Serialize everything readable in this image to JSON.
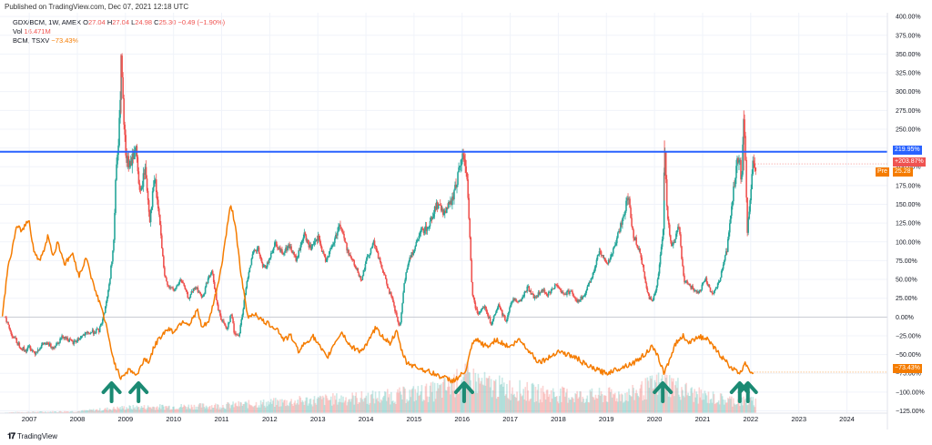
{
  "header": {
    "published": "Published on TradingView.com, Dec 07, 2021 12:18 UTC"
  },
  "legend": {
    "symbol": "GDX/BCM, 1W, AMEX",
    "o_key": "O",
    "o_val": "27.04",
    "h_key": "H",
    "h_val": "27.04",
    "l_key": "L",
    "l_val": "24.98",
    "c_key": "C",
    "c_val": "25.30",
    "change": "−0.49 (−1.90%)",
    "vol_label": "Vol",
    "vol_val": "16.471M",
    "bcm_label": "BCM, TSXV",
    "bcm_val": "−73.43%"
  },
  "footer": {
    "brand": "TradingView"
  },
  "colors": {
    "up": "#26a69a",
    "down": "#ef5350",
    "orange": "#f57c00",
    "blue": "#2962ff",
    "arrow": "#1b8a73",
    "grid": "#f0f3fa"
  },
  "tags": {
    "hline": "219.95%",
    "current": "+203.87%",
    "pre_label": "Pre",
    "pre_value": "25.28",
    "bcm": "−73.43%"
  },
  "chart_data": {
    "type": "line",
    "title": "",
    "y_axis": {
      "ticks": [
        400,
        375,
        350,
        325,
        300,
        275,
        250,
        225,
        200,
        175,
        150,
        125,
        100,
        75,
        50,
        25,
        0,
        -25,
        -50,
        -75,
        -100,
        -125
      ],
      "tick_labels": [
        "400.00%",
        "375.00%",
        "350.00%",
        "325.00%",
        "300.00%",
        "275.00%",
        "250.00%",
        "225.00%",
        "200.00%",
        "175.00%",
        "150.00%",
        "125.00%",
        "100.00%",
        "75.00%",
        "50.00%",
        "25.00%",
        "0.00%",
        "−25.00%",
        "−50.00%",
        "−75.00%",
        "−100.00%",
        "−125.00%"
      ],
      "range": [
        -128,
        405
      ],
      "scale": "percent"
    },
    "x_axis": {
      "years": [
        2007,
        2008,
        2009,
        2010,
        2011,
        2012,
        2013,
        2014,
        2015,
        2016,
        2017,
        2018,
        2019,
        2020,
        2021,
        2022,
        2023,
        2024
      ],
      "range": [
        2006.4,
        2024.85
      ]
    },
    "horizontal_line": {
      "value": 219.95
    },
    "series": [
      {
        "style": "candles",
        "points": [
          [
            2006.5,
            0
          ],
          [
            2006.6,
            -20
          ],
          [
            2006.75,
            -35
          ],
          [
            2006.9,
            -45
          ],
          [
            2007.0,
            -40
          ],
          [
            2007.1,
            -48
          ],
          [
            2007.3,
            -35
          ],
          [
            2007.5,
            -40
          ],
          [
            2007.7,
            -25
          ],
          [
            2007.9,
            -35
          ],
          [
            2008.1,
            -25
          ],
          [
            2008.3,
            -20
          ],
          [
            2008.45,
            -18
          ],
          [
            2008.55,
            5
          ],
          [
            2008.65,
            40
          ],
          [
            2008.75,
            100
          ],
          [
            2008.8,
            200
          ],
          [
            2008.85,
            230
          ],
          [
            2008.88,
            280
          ],
          [
            2008.9,
            350
          ],
          [
            2008.95,
            270
          ],
          [
            2009.0,
            210
          ],
          [
            2009.1,
            200
          ],
          [
            2009.2,
            230
          ],
          [
            2009.3,
            160
          ],
          [
            2009.4,
            200
          ],
          [
            2009.5,
            130
          ],
          [
            2009.6,
            185
          ],
          [
            2009.7,
            130
          ],
          [
            2009.8,
            55
          ],
          [
            2009.9,
            40
          ],
          [
            2010.0,
            35
          ],
          [
            2010.15,
            50
          ],
          [
            2010.3,
            25
          ],
          [
            2010.45,
            40
          ],
          [
            2010.6,
            25
          ],
          [
            2010.7,
            50
          ],
          [
            2010.8,
            60
          ],
          [
            2010.9,
            15
          ],
          [
            2011.0,
            -5
          ],
          [
            2011.1,
            -15
          ],
          [
            2011.2,
            5
          ],
          [
            2011.25,
            -20
          ],
          [
            2011.35,
            -25
          ],
          [
            2011.45,
            15
          ],
          [
            2011.55,
            60
          ],
          [
            2011.65,
            85
          ],
          [
            2011.75,
            90
          ],
          [
            2011.85,
            65
          ],
          [
            2011.95,
            70
          ],
          [
            2012.1,
            100
          ],
          [
            2012.25,
            85
          ],
          [
            2012.4,
            95
          ],
          [
            2012.55,
            75
          ],
          [
            2012.7,
            110
          ],
          [
            2012.85,
            90
          ],
          [
            2013.0,
            105
          ],
          [
            2013.15,
            75
          ],
          [
            2013.3,
            95
          ],
          [
            2013.45,
            125
          ],
          [
            2013.6,
            90
          ],
          [
            2013.75,
            70
          ],
          [
            2013.9,
            50
          ],
          [
            2014.0,
            75
          ],
          [
            2014.15,
            100
          ],
          [
            2014.3,
            70
          ],
          [
            2014.45,
            40
          ],
          [
            2014.55,
            20
          ],
          [
            2014.65,
            -5
          ],
          [
            2014.7,
            -15
          ],
          [
            2014.8,
            50
          ],
          [
            2014.9,
            80
          ],
          [
            2015.0,
            90
          ],
          [
            2015.15,
            115
          ],
          [
            2015.3,
            120
          ],
          [
            2015.45,
            150
          ],
          [
            2015.6,
            140
          ],
          [
            2015.75,
            150
          ],
          [
            2015.85,
            170
          ],
          [
            2015.95,
            205
          ],
          [
            2016.05,
            215
          ],
          [
            2016.1,
            175
          ],
          [
            2016.15,
            110
          ],
          [
            2016.2,
            35
          ],
          [
            2016.3,
            5
          ],
          [
            2016.45,
            15
          ],
          [
            2016.6,
            -10
          ],
          [
            2016.75,
            15
          ],
          [
            2016.9,
            -5
          ],
          [
            2017.05,
            25
          ],
          [
            2017.2,
            20
          ],
          [
            2017.35,
            40
          ],
          [
            2017.5,
            25
          ],
          [
            2017.65,
            35
          ],
          [
            2017.8,
            30
          ],
          [
            2017.95,
            45
          ],
          [
            2018.1,
            30
          ],
          [
            2018.25,
            35
          ],
          [
            2018.4,
            20
          ],
          [
            2018.55,
            30
          ],
          [
            2018.7,
            55
          ],
          [
            2018.85,
            90
          ],
          [
            2019.0,
            70
          ],
          [
            2019.15,
            90
          ],
          [
            2019.3,
            125
          ],
          [
            2019.45,
            160
          ],
          [
            2019.55,
            110
          ],
          [
            2019.7,
            85
          ],
          [
            2019.85,
            30
          ],
          [
            2019.95,
            20
          ],
          [
            2020.05,
            45
          ],
          [
            2020.12,
            85
          ],
          [
            2020.18,
            120
          ],
          [
            2020.2,
            235
          ],
          [
            2020.25,
            145
          ],
          [
            2020.35,
            90
          ],
          [
            2020.5,
            120
          ],
          [
            2020.6,
            50
          ],
          [
            2020.75,
            40
          ],
          [
            2020.9,
            30
          ],
          [
            2021.05,
            50
          ],
          [
            2021.2,
            30
          ],
          [
            2021.35,
            50
          ],
          [
            2021.5,
            90
          ],
          [
            2021.6,
            150
          ],
          [
            2021.7,
            200
          ],
          [
            2021.75,
            215
          ],
          [
            2021.8,
            180
          ],
          [
            2021.85,
            275
          ],
          [
            2021.88,
            220
          ],
          [
            2021.92,
            110
          ],
          [
            2022.0,
            175
          ],
          [
            2022.05,
            215
          ],
          [
            2022.1,
            200
          ]
        ]
      },
      {
        "name": "BCM, TSXV",
        "style": "line",
        "points": [
          [
            2006.45,
            0
          ],
          [
            2006.55,
            60
          ],
          [
            2006.65,
            90
          ],
          [
            2006.75,
            120
          ],
          [
            2006.85,
            115
          ],
          [
            2007.0,
            130
          ],
          [
            2007.1,
            90
          ],
          [
            2007.2,
            75
          ],
          [
            2007.3,
            85
          ],
          [
            2007.4,
            110
          ],
          [
            2007.5,
            80
          ],
          [
            2007.6,
            100
          ],
          [
            2007.75,
            70
          ],
          [
            2007.9,
            85
          ],
          [
            2008.05,
            55
          ],
          [
            2008.2,
            80
          ],
          [
            2008.35,
            40
          ],
          [
            2008.5,
            15
          ],
          [
            2008.6,
            -10
          ],
          [
            2008.7,
            -40
          ],
          [
            2008.8,
            -65
          ],
          [
            2008.9,
            -80
          ],
          [
            2009.0,
            -75
          ],
          [
            2009.1,
            -70
          ],
          [
            2009.25,
            -78
          ],
          [
            2009.4,
            -55
          ],
          [
            2009.5,
            -60
          ],
          [
            2009.6,
            -40
          ],
          [
            2009.75,
            -25
          ],
          [
            2009.9,
            -15
          ],
          [
            2010.0,
            -20
          ],
          [
            2010.2,
            -5
          ],
          [
            2010.35,
            -10
          ],
          [
            2010.5,
            10
          ],
          [
            2010.6,
            -15
          ],
          [
            2010.75,
            -5
          ],
          [
            2010.9,
            35
          ],
          [
            2011.0,
            65
          ],
          [
            2011.1,
            110
          ],
          [
            2011.2,
            150
          ],
          [
            2011.3,
            120
          ],
          [
            2011.4,
            60
          ],
          [
            2011.5,
            20
          ],
          [
            2011.55,
            0
          ],
          [
            2011.7,
            5
          ],
          [
            2011.85,
            -5
          ],
          [
            2012.0,
            -10
          ],
          [
            2012.15,
            -15
          ],
          [
            2012.3,
            -30
          ],
          [
            2012.45,
            -25
          ],
          [
            2012.6,
            -45
          ],
          [
            2012.75,
            -35
          ],
          [
            2012.9,
            -25
          ],
          [
            2013.05,
            -40
          ],
          [
            2013.2,
            -55
          ],
          [
            2013.35,
            -35
          ],
          [
            2013.5,
            -20
          ],
          [
            2013.7,
            -40
          ],
          [
            2013.9,
            -45
          ],
          [
            2014.05,
            -35
          ],
          [
            2014.2,
            -15
          ],
          [
            2014.35,
            -25
          ],
          [
            2014.5,
            -35
          ],
          [
            2014.65,
            -20
          ],
          [
            2014.75,
            -45
          ],
          [
            2014.85,
            -60
          ],
          [
            2015.0,
            -65
          ],
          [
            2015.2,
            -70
          ],
          [
            2015.4,
            -75
          ],
          [
            2015.6,
            -80
          ],
          [
            2015.8,
            -85
          ],
          [
            2015.95,
            -80
          ],
          [
            2016.1,
            -70
          ],
          [
            2016.2,
            -40
          ],
          [
            2016.3,
            -30
          ],
          [
            2016.4,
            -35
          ],
          [
            2016.55,
            -40
          ],
          [
            2016.7,
            -30
          ],
          [
            2016.85,
            -35
          ],
          [
            2017.0,
            -40
          ],
          [
            2017.2,
            -30
          ],
          [
            2017.4,
            -45
          ],
          [
            2017.6,
            -60
          ],
          [
            2017.8,
            -55
          ],
          [
            2018.0,
            -45
          ],
          [
            2018.2,
            -50
          ],
          [
            2018.4,
            -55
          ],
          [
            2018.6,
            -65
          ],
          [
            2018.8,
            -70
          ],
          [
            2019.0,
            -75
          ],
          [
            2019.2,
            -70
          ],
          [
            2019.4,
            -65
          ],
          [
            2019.6,
            -60
          ],
          [
            2019.8,
            -50
          ],
          [
            2019.95,
            -40
          ],
          [
            2020.1,
            -55
          ],
          [
            2020.2,
            -75
          ],
          [
            2020.3,
            -60
          ],
          [
            2020.45,
            -35
          ],
          [
            2020.6,
            -25
          ],
          [
            2020.75,
            -35
          ],
          [
            2020.9,
            -25
          ],
          [
            2021.1,
            -30
          ],
          [
            2021.3,
            -45
          ],
          [
            2021.5,
            -60
          ],
          [
            2021.65,
            -70
          ],
          [
            2021.8,
            -75
          ],
          [
            2021.88,
            -60
          ],
          [
            2021.95,
            -65
          ],
          [
            2022.0,
            -73
          ],
          [
            2022.08,
            -73
          ]
        ]
      }
    ],
    "volume": {
      "min_year": 2006.5,
      "max_year": 2022.1,
      "profile": [
        [
          2006.5,
          0.02
        ],
        [
          2008.0,
          0.05
        ],
        [
          2009.0,
          0.15
        ],
        [
          2011.0,
          0.2
        ],
        [
          2013.0,
          0.35
        ],
        [
          2014.5,
          0.45
        ],
        [
          2015.5,
          0.6
        ],
        [
          2016.1,
          0.95
        ],
        [
          2016.5,
          0.75
        ],
        [
          2017.5,
          0.55
        ],
        [
          2018.5,
          0.45
        ],
        [
          2019.5,
          0.5
        ],
        [
          2020.2,
          0.85
        ],
        [
          2020.8,
          0.5
        ],
        [
          2021.5,
          0.35
        ],
        [
          2022.1,
          0.3
        ]
      ]
    },
    "arrows": [
      2008.72,
      2009.28,
      2016.05,
      2020.18,
      2021.78,
      2021.95
    ]
  }
}
